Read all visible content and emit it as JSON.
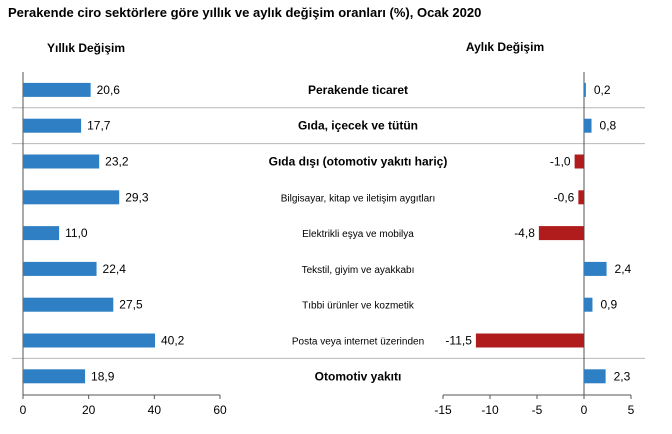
{
  "chart_data": {
    "type": "bar",
    "title": "Perakende ciro sektörlere göre yıllık ve aylık değişim oranları (%), Ocak 2020",
    "categories": [
      "Perakende ticaret",
      "Gıda, içecek ve tütün",
      "Gıda dışı (otomotiv yakıtı hariç)",
      "Bilgisayar, kitap ve iletişim aygıtları",
      "Elektrikli eşya ve mobilya",
      "Tekstil, giyim ve ayakkabı",
      "Tıbbi ürünler ve kozmetik",
      "Posta veya internet üzerinden",
      "Otomotiv yakıtı"
    ],
    "bold_categories": [
      true,
      true,
      true,
      false,
      false,
      false,
      false,
      false,
      true
    ],
    "series": [
      {
        "name": "Yıllık Değişim",
        "values": [
          20.6,
          17.7,
          23.2,
          29.3,
          11.0,
          22.4,
          27.5,
          40.2,
          18.9
        ],
        "labels": [
          "20,6",
          "17,7",
          "23,2",
          "29,3",
          "11,0",
          "22,4",
          "27,5",
          "40,2",
          "18,9"
        ],
        "xlim": [
          0,
          60
        ],
        "ticks": [
          0,
          20,
          40,
          60
        ],
        "tick_labels": [
          "0",
          "20",
          "40",
          "60"
        ],
        "color": "#2e7fc3"
      },
      {
        "name": "Aylık Değişim",
        "values": [
          0.2,
          0.8,
          -1.0,
          -0.6,
          -4.8,
          2.4,
          0.9,
          -11.5,
          2.3
        ],
        "labels": [
          "0,2",
          "0,8",
          "-1,0",
          "-0,6",
          "-4,8",
          "2,4",
          "0,9",
          "-11,5",
          "2,3"
        ],
        "xlim": [
          -15,
          5
        ],
        "ticks": [
          -15,
          -10,
          -5,
          0,
          5
        ],
        "tick_labels": [
          "-15",
          "-10",
          "-5",
          "0",
          "5"
        ],
        "positive_color": "#2e7fc3",
        "negative_color": "#b01c1c"
      }
    ],
    "separators_after": [
      0,
      1,
      7
    ]
  }
}
